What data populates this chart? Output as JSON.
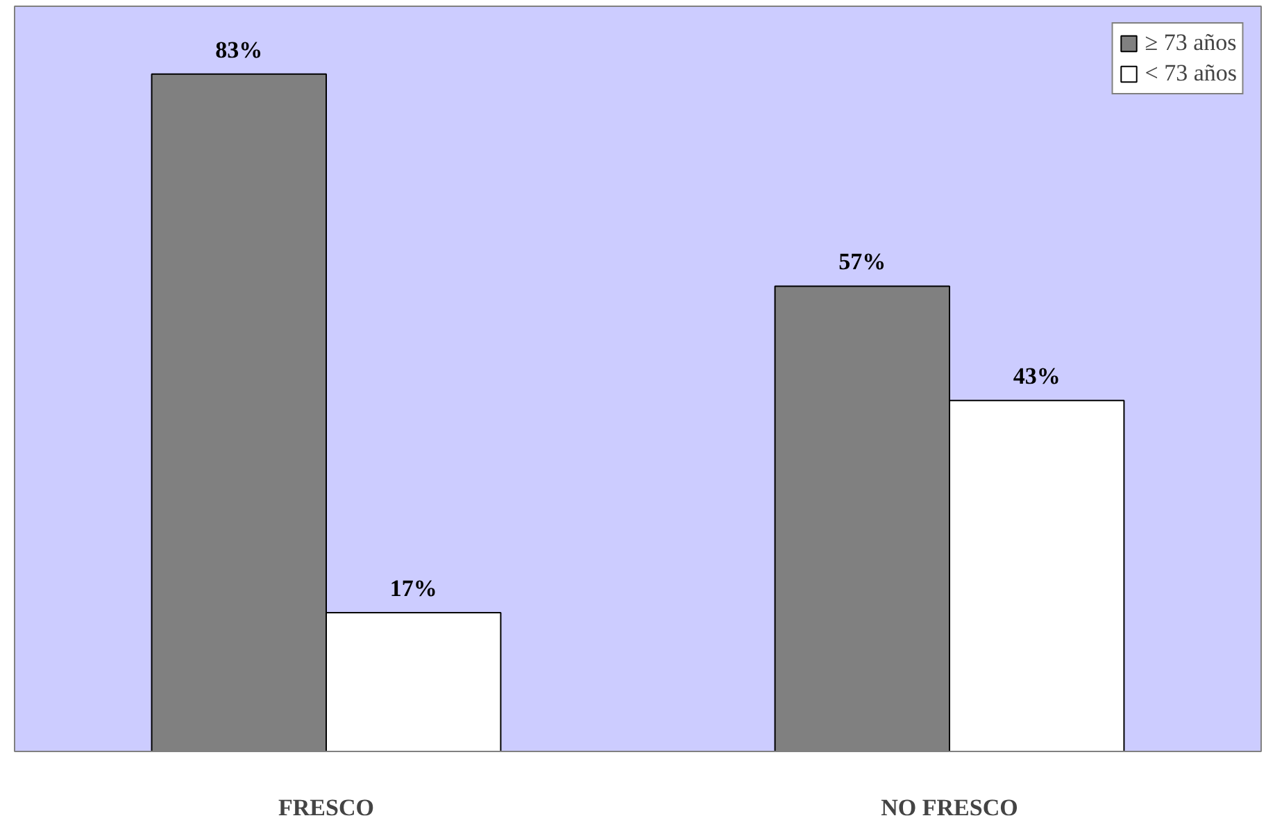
{
  "chart_data": {
    "type": "bar",
    "categories": [
      "FRESCO",
      "NO FRESCO"
    ],
    "series": [
      {
        "name": "≥ 73 años",
        "color": "#808080",
        "values": [
          83,
          57
        ],
        "value_labels": [
          "83%",
          "57%"
        ]
      },
      {
        "name": "< 73 años",
        "color": "#ffffff",
        "values": [
          17,
          43
        ],
        "value_labels": [
          "17%",
          "43%"
        ]
      }
    ],
    "legend": "top right",
    "grid": false
  }
}
